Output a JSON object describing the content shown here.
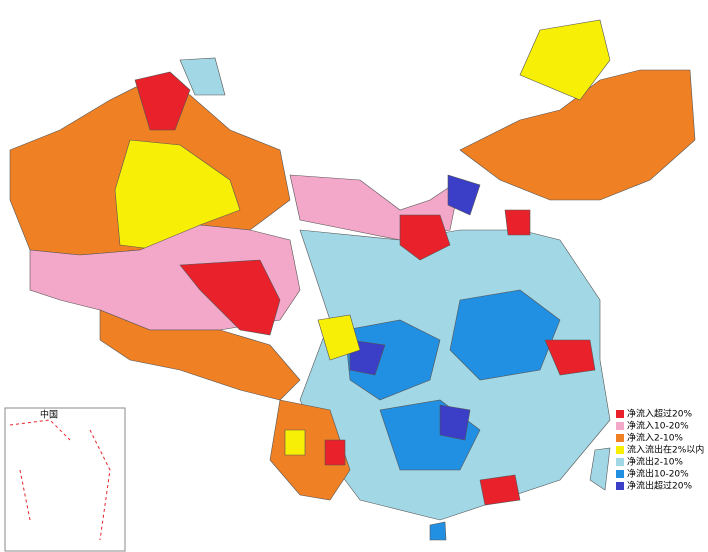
{
  "inset": {
    "title": "中国"
  },
  "legend": {
    "items": [
      {
        "label": "净流入超过20%",
        "color": "#e8212b"
      },
      {
        "label": "净流入10-20%",
        "color": "#f3a7c9"
      },
      {
        "label": "净流入2-10%",
        "color": "#f08024"
      },
      {
        "label": "流入流出在2%以内",
        "color": "#f7ef05"
      },
      {
        "label": "净流出2-10%",
        "color": "#a2d7e6"
      },
      {
        "label": "净流出10-20%",
        "color": "#2290e2"
      },
      {
        "label": "净流出超过20%",
        "color": "#3b3ec6"
      }
    ]
  }
}
